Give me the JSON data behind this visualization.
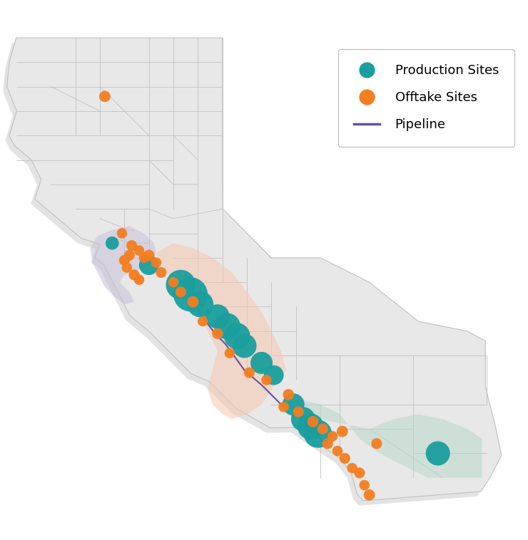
{
  "background_color": "#ffffff",
  "map_fill_color": "#e8e8e8",
  "map_edge_color": "#c0c0c0",
  "teal_color": "#1A9E9E",
  "orange_color": "#F47E20",
  "purple_color": "#6A4FA0",
  "shadow_color": "#cccccc",
  "bay_area_color": "#c8c0d8",
  "central_valley_color": "#f5c8b0",
  "la_basin_color": "#b8d8c8",
  "production_sites": [
    {
      "lon": -122.25,
      "lat": 37.8,
      "size": 180
    },
    {
      "lon": -121.5,
      "lat": 37.35,
      "size": 400
    },
    {
      "lon": -120.85,
      "lat": 36.95,
      "size": 900
    },
    {
      "lon": -120.65,
      "lat": 36.75,
      "size": 1200
    },
    {
      "lon": -120.45,
      "lat": 36.55,
      "size": 700
    },
    {
      "lon": -120.1,
      "lat": 36.3,
      "size": 600
    },
    {
      "lon": -119.9,
      "lat": 36.1,
      "size": 700
    },
    {
      "lon": -119.7,
      "lat": 35.9,
      "size": 700
    },
    {
      "lon": -119.55,
      "lat": 35.7,
      "size": 600
    },
    {
      "lon": -119.2,
      "lat": 35.35,
      "size": 500
    },
    {
      "lon": -118.95,
      "lat": 35.1,
      "size": 400
    },
    {
      "lon": -118.55,
      "lat": 34.5,
      "size": 500
    },
    {
      "lon": -118.35,
      "lat": 34.2,
      "size": 600
    },
    {
      "lon": -118.2,
      "lat": 34.05,
      "size": 700
    },
    {
      "lon": -118.05,
      "lat": 33.9,
      "size": 800
    },
    {
      "lon": -115.6,
      "lat": 33.5,
      "size": 600
    }
  ],
  "offtake_sites": [
    {
      "lon": -122.4,
      "lat": 40.8,
      "size": 130
    },
    {
      "lon": -122.05,
      "lat": 38.0,
      "size": 110
    },
    {
      "lon": -121.85,
      "lat": 37.75,
      "size": 120
    },
    {
      "lon": -121.7,
      "lat": 37.65,
      "size": 110
    },
    {
      "lon": -121.9,
      "lat": 37.55,
      "size": 120
    },
    {
      "lon": -121.6,
      "lat": 37.5,
      "size": 110
    },
    {
      "lon": -122.0,
      "lat": 37.45,
      "size": 120
    },
    {
      "lon": -121.95,
      "lat": 37.3,
      "size": 110
    },
    {
      "lon": -121.8,
      "lat": 37.15,
      "size": 120
    },
    {
      "lon": -121.7,
      "lat": 37.05,
      "size": 110
    },
    {
      "lon": -121.5,
      "lat": 37.55,
      "size": 130
    },
    {
      "lon": -121.35,
      "lat": 37.4,
      "size": 110
    },
    {
      "lon": -121.25,
      "lat": 37.2,
      "size": 120
    },
    {
      "lon": -121.0,
      "lat": 37.0,
      "size": 110
    },
    {
      "lon": -120.85,
      "lat": 36.8,
      "size": 120
    },
    {
      "lon": -120.6,
      "lat": 36.6,
      "size": 130
    },
    {
      "lon": -120.4,
      "lat": 36.2,
      "size": 110
    },
    {
      "lon": -120.1,
      "lat": 35.95,
      "size": 120
    },
    {
      "lon": -119.85,
      "lat": 35.55,
      "size": 110
    },
    {
      "lon": -119.45,
      "lat": 35.15,
      "size": 120
    },
    {
      "lon": -119.1,
      "lat": 35.0,
      "size": 110
    },
    {
      "lon": -118.65,
      "lat": 34.7,
      "size": 130
    },
    {
      "lon": -118.75,
      "lat": 34.45,
      "size": 110
    },
    {
      "lon": -118.45,
      "lat": 34.35,
      "size": 120
    },
    {
      "lon": -118.15,
      "lat": 34.15,
      "size": 130
    },
    {
      "lon": -117.95,
      "lat": 34.0,
      "size": 120
    },
    {
      "lon": -117.75,
      "lat": 33.85,
      "size": 110
    },
    {
      "lon": -117.85,
      "lat": 33.7,
      "size": 120
    },
    {
      "lon": -117.65,
      "lat": 33.55,
      "size": 110
    },
    {
      "lon": -117.5,
      "lat": 33.4,
      "size": 120
    },
    {
      "lon": -117.35,
      "lat": 33.2,
      "size": 110
    },
    {
      "lon": -117.2,
      "lat": 33.1,
      "size": 120
    },
    {
      "lon": -117.55,
      "lat": 33.95,
      "size": 130
    },
    {
      "lon": -116.85,
      "lat": 33.7,
      "size": 120
    },
    {
      "lon": -117.1,
      "lat": 32.85,
      "size": 110
    },
    {
      "lon": -117.0,
      "lat": 32.65,
      "size": 130
    }
  ],
  "pipeline_coords_1": [
    [
      -120.65,
      36.75
    ],
    [
      -120.55,
      36.55
    ],
    [
      -120.45,
      36.35
    ],
    [
      -120.3,
      36.15
    ],
    [
      -120.15,
      35.95
    ],
    [
      -119.95,
      35.75
    ],
    [
      -119.8,
      35.55
    ],
    [
      -119.55,
      35.2
    ],
    [
      -119.2,
      34.9
    ],
    [
      -118.9,
      34.6
    ],
    [
      -118.65,
      34.35
    ]
  ],
  "pipeline_coords_2": [
    [
      -118.55,
      34.45
    ],
    [
      -118.4,
      34.2
    ],
    [
      -118.25,
      34.05
    ],
    [
      -118.1,
      33.9
    ],
    [
      -117.95,
      33.75
    ]
  ],
  "xlim": [
    -124.5,
    -113.8
  ],
  "ylim": [
    32.3,
    42.2
  ]
}
